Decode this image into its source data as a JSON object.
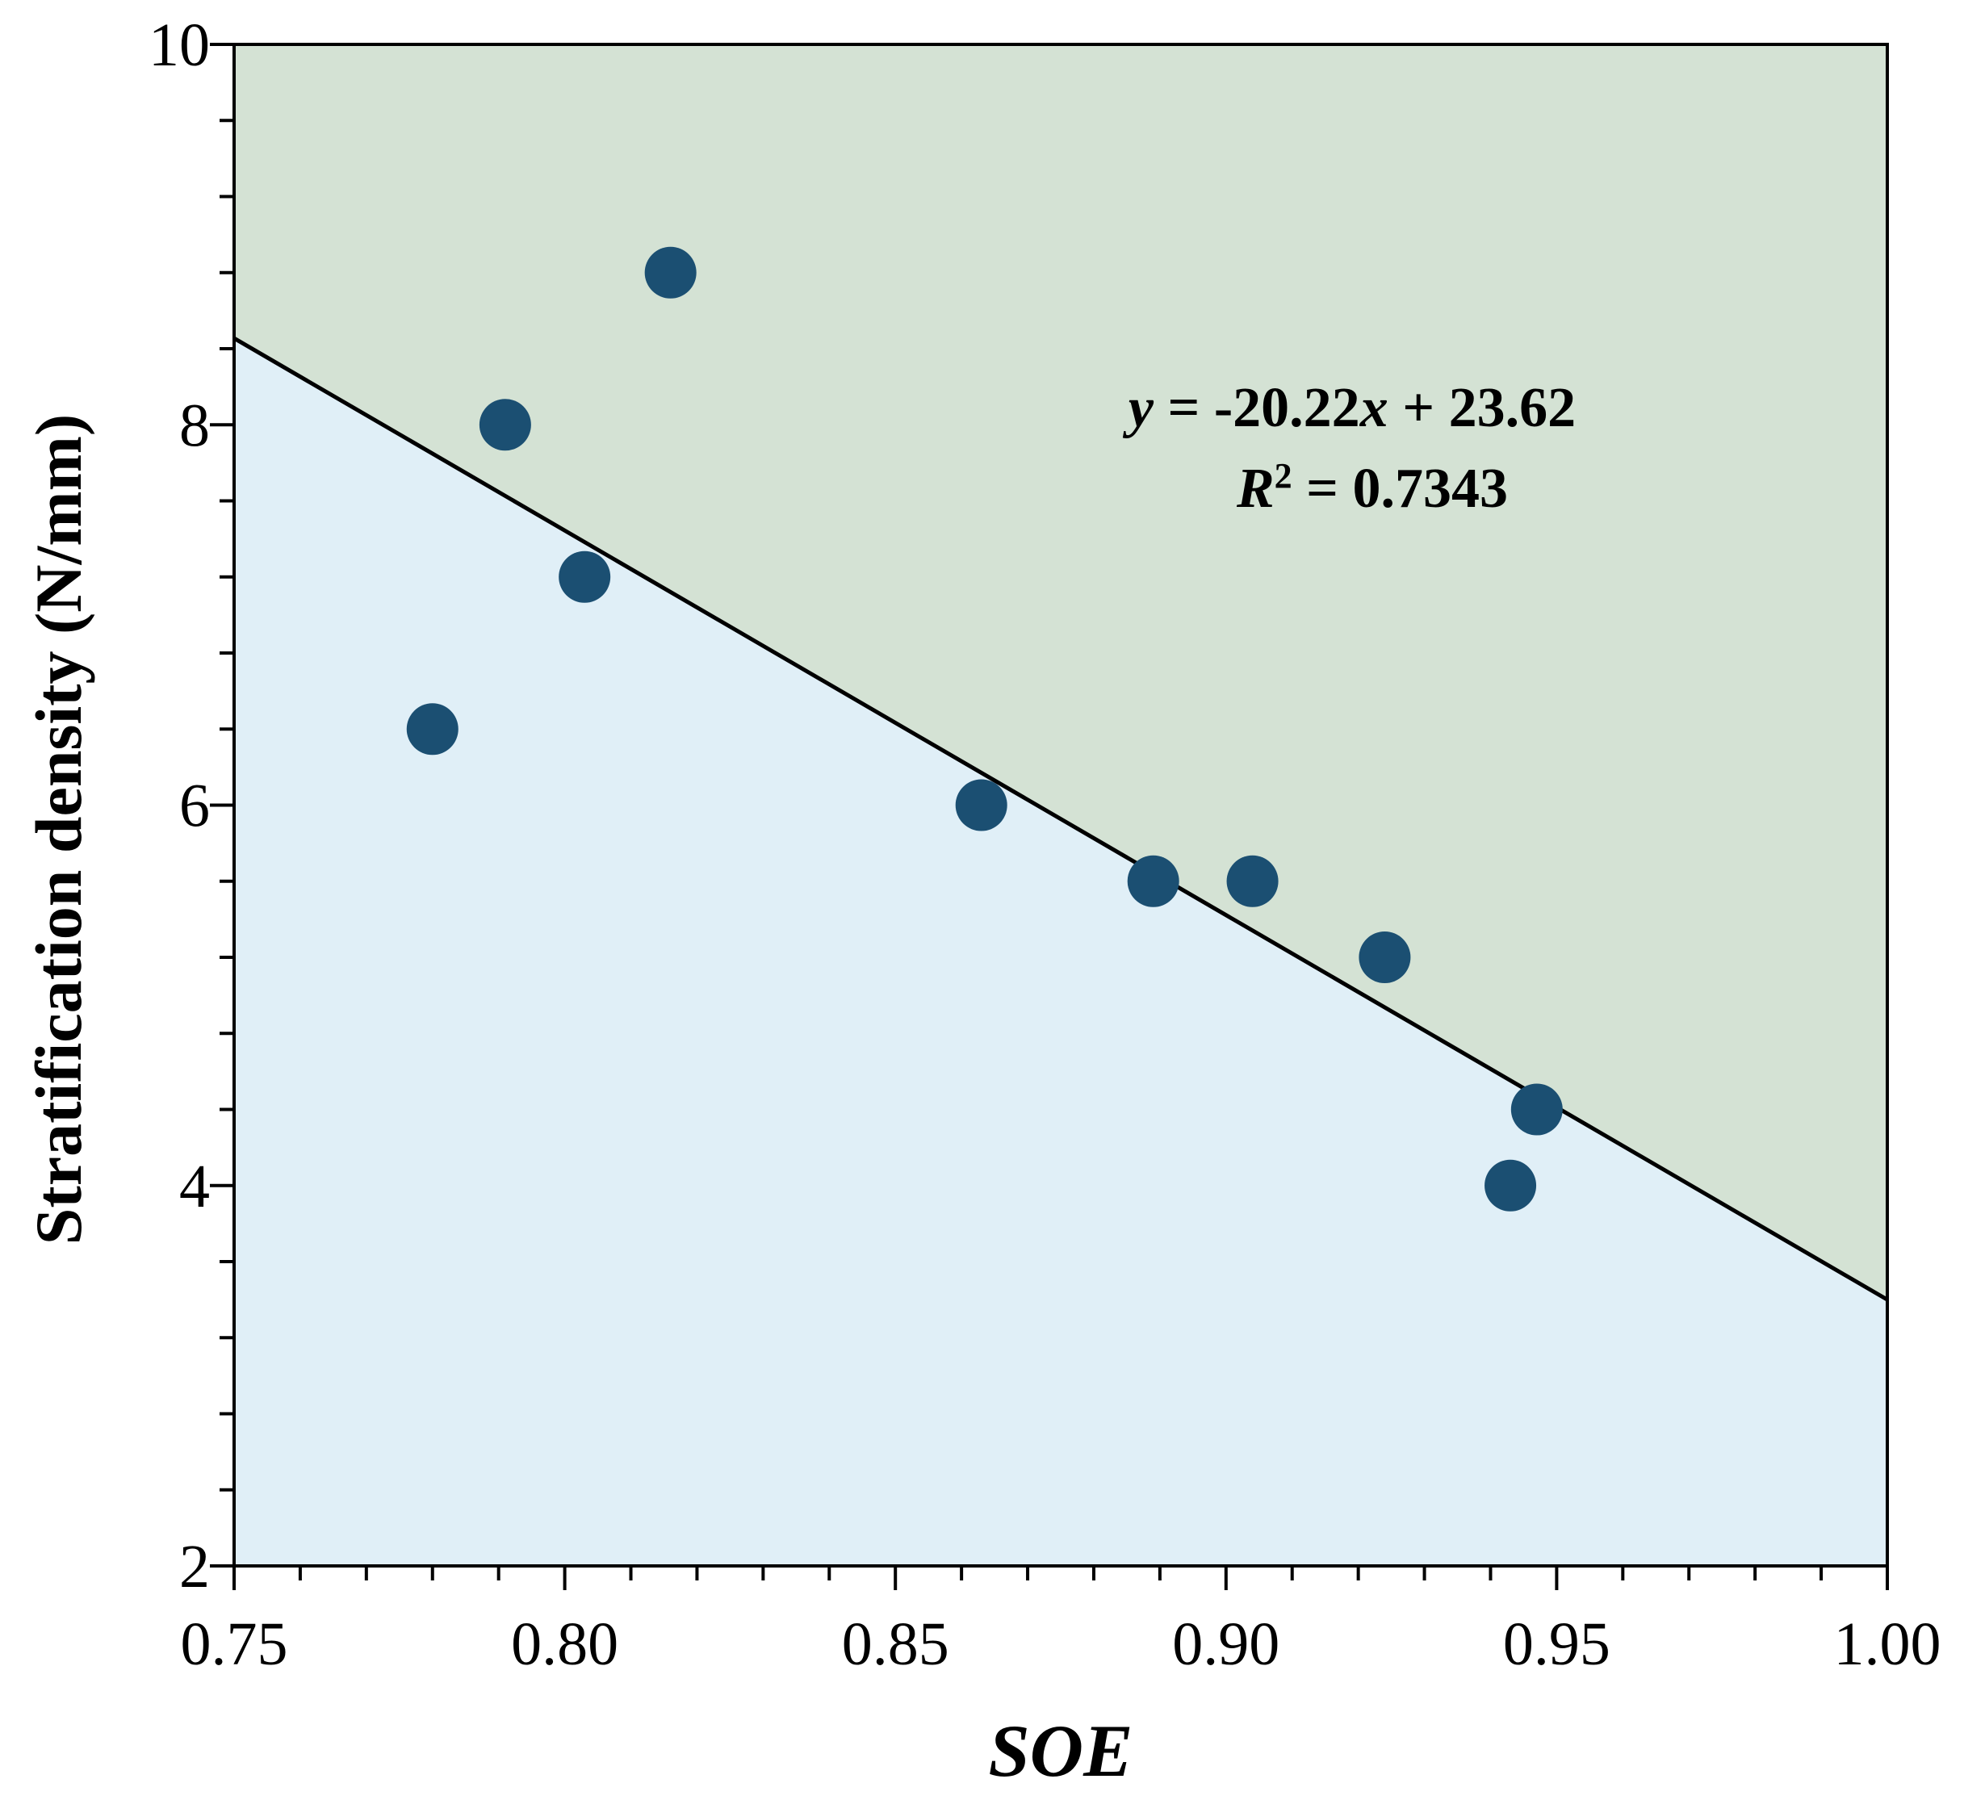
{
  "chart_data": {
    "type": "scatter",
    "title": "",
    "xlabel": "SOE",
    "ylabel": "Stratification density (N/mm)",
    "xlim": [
      0.75,
      1.0
    ],
    "ylim": [
      2,
      10
    ],
    "x_ticks": [
      0.75,
      0.8,
      0.85,
      0.9,
      0.95,
      1.0
    ],
    "x_tick_labels": [
      "0.75",
      "0.80",
      "0.85",
      "0.90",
      "0.95",
      "1.00"
    ],
    "x_minor_step": 0.01,
    "y_ticks": [
      2,
      4,
      6,
      8,
      10
    ],
    "y_tick_labels": [
      "2",
      "4",
      "6",
      "8",
      "10"
    ],
    "y_minor_step": 0.4,
    "grid": false,
    "series": [
      {
        "name": "samples",
        "color": "#1b4f72",
        "points": [
          {
            "x": 0.78,
            "y": 6.4
          },
          {
            "x": 0.791,
            "y": 8.0
          },
          {
            "x": 0.803,
            "y": 7.2
          },
          {
            "x": 0.816,
            "y": 8.8
          },
          {
            "x": 0.863,
            "y": 6.0
          },
          {
            "x": 0.889,
            "y": 5.6
          },
          {
            "x": 0.904,
            "y": 5.6
          },
          {
            "x": 0.924,
            "y": 5.2
          },
          {
            "x": 0.943,
            "y": 4.0
          },
          {
            "x": 0.947,
            "y": 4.4
          }
        ]
      }
    ],
    "fit_line": {
      "slope": -20.22,
      "intercept": 23.62,
      "color": "#000000",
      "equation_y": "y",
      "equation_eq_slope": " = -20.22",
      "equation_x": "x",
      "equation_tail": " + 23.62",
      "r2_label": "R",
      "r2_sup": "2",
      "r2_value": " = 0.7343"
    },
    "regions": {
      "above_color": "#d4e2d4",
      "below_color": "#e0eff7"
    }
  }
}
